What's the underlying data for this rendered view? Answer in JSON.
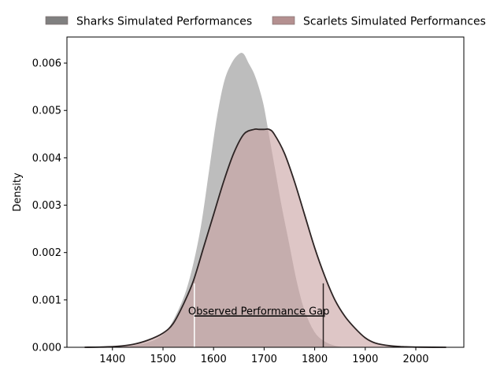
{
  "chart_data": {
    "type": "area",
    "xlabel": "",
    "ylabel": "Density",
    "xlim": [
      1310,
      2095
    ],
    "ylim": [
      0,
      0.00655
    ],
    "xticks": [
      1400,
      1500,
      1600,
      1700,
      1800,
      1900,
      2000
    ],
    "yticks": [
      0.0,
      0.001,
      0.002,
      0.003,
      0.004,
      0.005,
      0.006
    ],
    "ytick_labels": [
      "0.000",
      "0.001",
      "0.002",
      "0.003",
      "0.004",
      "0.005",
      "0.006"
    ],
    "legend_position": "top-center",
    "series": [
      {
        "name": "Sharks Simulated Performances",
        "legend_color": "#808080",
        "fill": "#bdbdbd",
        "stroke": "#ffffff",
        "x": [
          1370,
          1400,
          1430,
          1460,
          1490,
          1510,
          1530,
          1545,
          1560,
          1575,
          1590,
          1605,
          1620,
          1635,
          1650,
          1660,
          1670,
          1680,
          1690,
          1700,
          1710,
          1720,
          1735,
          1750,
          1765,
          1780,
          1800,
          1820,
          1840,
          1860,
          1880,
          1900
        ],
        "y": [
          0.0,
          1e-05,
          3e-05,
          8e-05,
          0.0002,
          0.0004,
          0.0008,
          0.0012,
          0.0018,
          0.0026,
          0.0037,
          0.0048,
          0.0056,
          0.006,
          0.0062,
          0.0062,
          0.006,
          0.0058,
          0.0055,
          0.0051,
          0.0045,
          0.0039,
          0.003,
          0.0022,
          0.0014,
          0.0008,
          0.00033,
          0.00013,
          4e-05,
          1e-05,
          2e-06,
          0.0
        ]
      },
      {
        "name": "Scarlets Simulated Performances",
        "legend_color": "#b49090",
        "fill": "#c9a3a3",
        "stroke": "#2d2424",
        "x": [
          1345,
          1380,
          1410,
          1440,
          1470,
          1500,
          1520,
          1540,
          1560,
          1580,
          1600,
          1620,
          1640,
          1660,
          1680,
          1690,
          1700,
          1710,
          1720,
          1740,
          1760,
          1780,
          1800,
          1820,
          1840,
          1860,
          1880,
          1900,
          1920,
          1950,
          1980,
          2010,
          2060
        ],
        "y": [
          0.0,
          5e-06,
          2e-05,
          6e-05,
          0.00015,
          0.0003,
          0.0005,
          0.0009,
          0.0014,
          0.0021,
          0.0028,
          0.0035,
          0.0041,
          0.0045,
          0.0046,
          0.0046,
          0.0046,
          0.0046,
          0.0045,
          0.0041,
          0.0035,
          0.0028,
          0.0021,
          0.0015,
          0.001,
          0.00065,
          0.0004,
          0.0002,
          9e-05,
          3e-05,
          1e-05,
          3e-06,
          0.0
        ]
      }
    ],
    "annotations": {
      "label": "Observed Performance Gap",
      "x_start": 1562,
      "x_end": 1817,
      "y_level": 0.00066,
      "vline_top": 0.00135,
      "start_line_color": "#ffffff",
      "end_line_color": "#2d2424"
    }
  }
}
